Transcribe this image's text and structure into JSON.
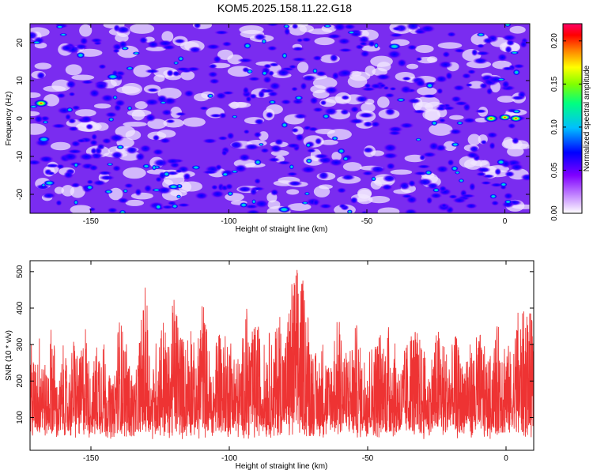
{
  "title": "KOM5.2025.158.11.22.G18",
  "chart_data": [
    {
      "type": "heatmap",
      "xlabel": "Height of straight line (km)",
      "ylabel": "Frequency (Hz)",
      "xlim": [
        -172,
        9
      ],
      "ylim": [
        -25,
        25
      ],
      "xticks": [
        -150,
        -100,
        -50,
        0
      ],
      "yticks": [
        -20,
        -10,
        0,
        10,
        20
      ],
      "xtick_labels": [
        "-150",
        "-100",
        "-50",
        "0"
      ],
      "ytick_labels": [
        "-20",
        "-10",
        "0",
        "10",
        "20"
      ],
      "colorbar": {
        "label": "Normalized spectral amplitude",
        "range": [
          0,
          0.22
        ],
        "ticks": [
          0,
          0.05,
          0.1,
          0.15,
          0.2
        ],
        "tick_labels": [
          "0.00",
          "0.05",
          "0.10",
          "0.15",
          "0.20"
        ],
        "colors": [
          "#ffffff",
          "#cc99ff",
          "#8000ff",
          "#0000ff",
          "#00bfff",
          "#00ff80",
          "#80ff00",
          "#ffff00",
          "#ff8000",
          "#ff0000",
          "#ff0066"
        ]
      },
      "peaks": [
        {
          "x": -168,
          "y": 4,
          "value": 0.21
        },
        {
          "x": -167,
          "y": -5.5,
          "value": 0.12
        },
        {
          "x": -165,
          "y": -17,
          "value": 0.09
        },
        {
          "x": -142,
          "y": 11,
          "value": 0.12
        },
        {
          "x": -5,
          "y": 0,
          "value": 0.2
        },
        {
          "x": 0,
          "y": 0.3,
          "value": 0.15
        },
        {
          "x": 4,
          "y": 0,
          "value": 0.17
        },
        {
          "x": -40,
          "y": 19,
          "value": 0.12
        },
        {
          "x": -80,
          "y": -24,
          "value": 0.11
        },
        {
          "x": -120,
          "y": -18,
          "value": 0.08
        }
      ]
    },
    {
      "type": "line",
      "xlabel": "Height of straight line (km)",
      "ylabel": "SNR (10 * v/v)",
      "xlim": [
        -172,
        10
      ],
      "ylim": [
        10,
        530
      ],
      "xticks": [
        -150,
        -100,
        -50,
        0
      ],
      "yticks": [
        100,
        200,
        300,
        400,
        500
      ],
      "xtick_labels": [
        "-150",
        "-100",
        "-50",
        "0"
      ],
      "ytick_labels": [
        "100",
        "200",
        "300",
        "400",
        "500"
      ],
      "color": "#ee3333",
      "series": [
        {
          "x": [
            -172,
            -170,
            -168,
            -166,
            -164,
            -162,
            -160,
            -158,
            -156,
            -154,
            -152,
            -150,
            -148,
            -146,
            -144,
            -142,
            -140,
            -138,
            -136,
            -134,
            -132,
            -130,
            -128,
            -126,
            -124,
            -122,
            -120,
            -118,
            -116,
            -114,
            -112,
            -110,
            -108,
            -106,
            -104,
            -102,
            -100,
            -98,
            -96,
            -94,
            -92,
            -90,
            -88,
            -86,
            -84,
            -82,
            -80,
            -78,
            -76,
            -74,
            -72,
            -70,
            -68,
            -66,
            -64,
            -62,
            -60,
            -58,
            -56,
            -54,
            -52,
            -50,
            -48,
            -46,
            -44,
            -42,
            -40,
            -38,
            -36,
            -34,
            -32,
            -30,
            -28,
            -26,
            -24,
            -22,
            -20,
            -18,
            -16,
            -14,
            -12,
            -10,
            -8,
            -6,
            -4,
            -2,
            0,
            2,
            4,
            6,
            8,
            10
          ],
          "y": [
            330,
            250,
            380,
            210,
            400,
            170,
            300,
            220,
            340,
            260,
            380,
            200,
            310,
            360,
            230,
            190,
            390,
            340,
            250,
            200,
            370,
            480,
            210,
            350,
            400,
            290,
            450,
            380,
            300,
            410,
            240,
            460,
            350,
            200,
            390,
            320,
            350,
            290,
            260,
            420,
            330,
            380,
            290,
            350,
            300,
            420,
            310,
            460,
            530,
            500,
            440,
            310,
            260,
            330,
            250,
            350,
            390,
            280,
            320,
            360,
            260,
            320,
            300,
            350,
            330,
            370,
            300,
            250,
            310,
            360,
            340,
            300,
            230,
            320,
            360,
            300,
            290,
            330,
            250,
            320,
            290,
            350,
            300,
            260,
            340,
            370,
            330,
            270,
            400,
            390,
            420,
            350
          ]
        }
      ]
    }
  ]
}
